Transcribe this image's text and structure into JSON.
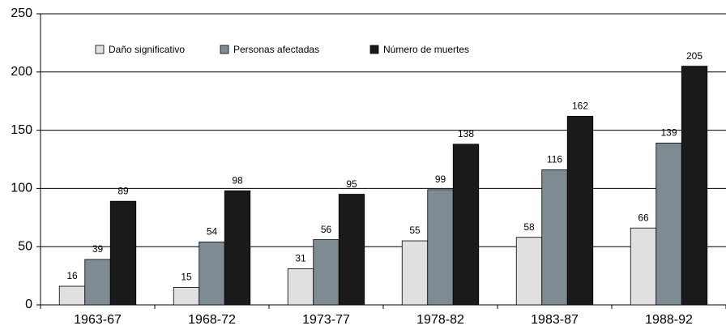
{
  "chart_data": {
    "type": "bar",
    "categories": [
      "1963-67",
      "1968-72",
      "1973-77",
      "1978-82",
      "1983-87",
      "1988-92"
    ],
    "series": [
      {
        "name": "Daño significativo",
        "color": "#e0e0e0",
        "values": [
          16,
          15,
          31,
          55,
          58,
          66
        ]
      },
      {
        "name": "Personas afectadas",
        "color": "#7e8b92",
        "values": [
          39,
          54,
          56,
          99,
          116,
          139
        ]
      },
      {
        "name": "Número de muertes",
        "color": "#1a1a1a",
        "values": [
          89,
          98,
          95,
          138,
          162,
          205
        ]
      }
    ],
    "ylim": [
      0,
      250
    ],
    "yticks": [
      0,
      50,
      100,
      150,
      200,
      250
    ],
    "grid": true,
    "legend": "top-left"
  }
}
